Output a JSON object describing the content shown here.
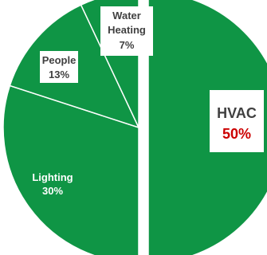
{
  "chart_data": {
    "type": "pie",
    "slices": [
      {
        "label": "HVAC",
        "value": 50,
        "value_text": "50%"
      },
      {
        "label": "Lighting",
        "value": 30,
        "value_text": "30%"
      },
      {
        "label": "People",
        "value": 13,
        "value_text": "13%"
      },
      {
        "label": "Water Heating",
        "value": 7,
        "value_text": "7%"
      }
    ],
    "exploded_slice": "HVAC",
    "colors": {
      "slice_fill": "#0f9545",
      "separator": "#ffffff",
      "label_text": "#404040",
      "highlight_value": "#cc0000",
      "label_background": "#ffffff"
    }
  }
}
